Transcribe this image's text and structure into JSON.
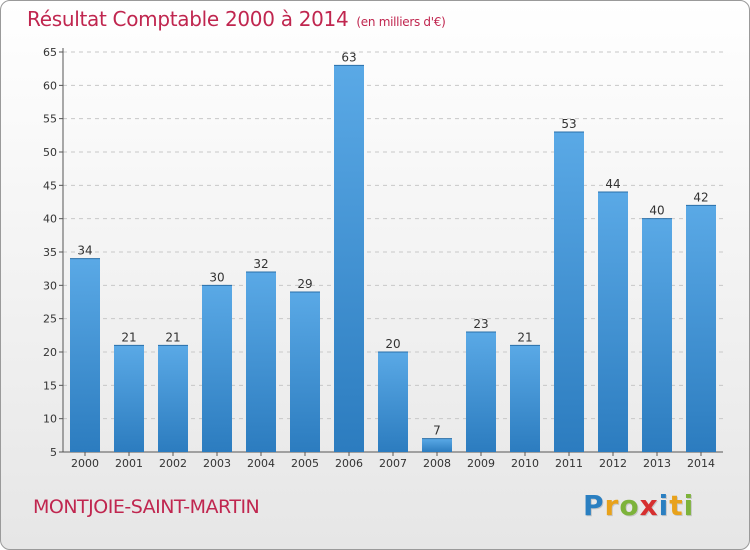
{
  "title": "Résultat Comptable 2000 à 2014",
  "unit": "(en milliers d'€)",
  "commune": "MONTJOIE-SAINT-MARTIN",
  "logo": {
    "letters": [
      {
        "ch": "P",
        "color": "#2a7fc1"
      },
      {
        "ch": "r",
        "color": "#e8a21b"
      },
      {
        "ch": "o",
        "color": "#7db33a"
      },
      {
        "ch": "x",
        "color": "#d62f2f"
      },
      {
        "ch": "i",
        "color": "#2a7fc1"
      },
      {
        "ch": "t",
        "color": "#e8a21b"
      },
      {
        "ch": "i",
        "color": "#7db33a"
      }
    ]
  },
  "colors": {
    "accent": "#c0264f",
    "bar_top": "#5aa9e6",
    "bar_bottom": "#2c7cbf"
  },
  "chart_data": {
    "type": "bar",
    "categories": [
      "2000",
      "2001",
      "2002",
      "2003",
      "2004",
      "2005",
      "2006",
      "2007",
      "2008",
      "2009",
      "2010",
      "2011",
      "2012",
      "2013",
      "2014"
    ],
    "values": [
      34,
      21,
      21,
      30,
      32,
      29,
      63,
      20,
      7,
      23,
      21,
      53,
      44,
      40,
      42
    ],
    "ylim": [
      5,
      65
    ],
    "yticks": [
      5,
      10,
      15,
      20,
      25,
      30,
      35,
      40,
      45,
      50,
      55,
      60,
      65
    ],
    "grid": true,
    "data_labels": true
  }
}
